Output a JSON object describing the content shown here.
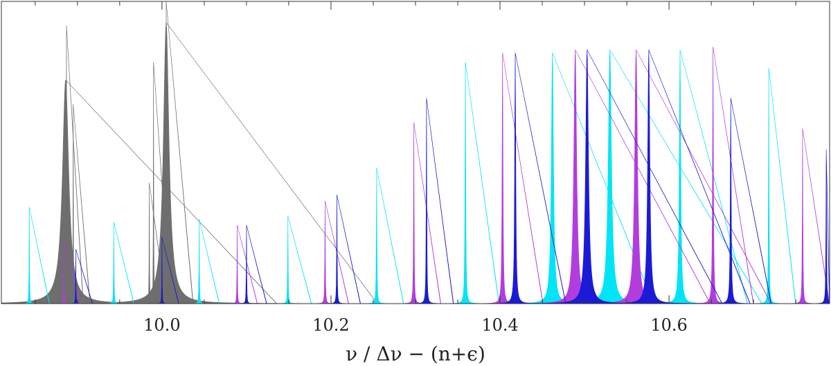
{
  "chart_data": {
    "type": "area",
    "xlabel": "ν / Δν − (n+ϵ)",
    "ylabel": "",
    "title": "",
    "xlim": [
      9.81,
      10.79
    ],
    "ylim": [
      0,
      1.0
    ],
    "xticks": [
      {
        "value": 10.0,
        "label": "10.0"
      },
      {
        "value": 10.2,
        "label": "10.2"
      },
      {
        "value": 10.4,
        "label": "10.4"
      },
      {
        "value": 10.6,
        "label": "10.6"
      }
    ],
    "grid": false,
    "legend": "none",
    "series": [
      {
        "color": "#6e6e6e",
        "peaks": [
          {
            "x": 9.886,
            "h": 0.74,
            "w": 0.009
          },
          {
            "x": 9.887,
            "h": 0.92,
            "w": 0.0005
          },
          {
            "x": 9.895,
            "h": 0.66,
            "w": 0.0005
          },
          {
            "x": 9.985,
            "h": 0.4,
            "w": 0.0005
          },
          {
            "x": 9.99,
            "h": 0.8,
            "w": 0.0005
          },
          {
            "x": 10.005,
            "h": 0.93,
            "w": 0.008
          },
          {
            "x": 10.005,
            "h": 1.0,
            "w": 0.0008
          }
        ]
      },
      {
        "color": "#00e5f5",
        "peaks": [
          {
            "x": 9.843,
            "h": 0.32,
            "w": 0.0006
          },
          {
            "x": 9.943,
            "h": 0.27,
            "w": 0.0006
          },
          {
            "x": 10.044,
            "h": 0.28,
            "w": 0.0006
          },
          {
            "x": 10.149,
            "h": 0.29,
            "w": 0.0007
          },
          {
            "x": 10.254,
            "h": 0.45,
            "w": 0.0008
          },
          {
            "x": 10.359,
            "h": 0.8,
            "w": 0.001
          },
          {
            "x": 10.462,
            "h": 0.83,
            "w": 0.003
          },
          {
            "x": 10.53,
            "h": 0.84,
            "w": 0.0045
          },
          {
            "x": 10.613,
            "h": 0.84,
            "w": 0.002
          },
          {
            "x": 10.718,
            "h": 0.78,
            "w": 0.0008
          }
        ]
      },
      {
        "color": "#b23ddf",
        "peaks": [
          {
            "x": 9.884,
            "h": 0.2,
            "w": 0.0005
          },
          {
            "x": 10.089,
            "h": 0.26,
            "w": 0.0006
          },
          {
            "x": 10.193,
            "h": 0.34,
            "w": 0.0007
          },
          {
            "x": 10.298,
            "h": 0.6,
            "w": 0.0008
          },
          {
            "x": 10.403,
            "h": 0.83,
            "w": 0.0012
          },
          {
            "x": 10.489,
            "h": 0.84,
            "w": 0.004
          },
          {
            "x": 10.561,
            "h": 0.84,
            "w": 0.004
          },
          {
            "x": 10.652,
            "h": 0.85,
            "w": 0.0012
          },
          {
            "x": 10.758,
            "h": 0.58,
            "w": 0.0008
          }
        ]
      },
      {
        "color": "#1b1bd6",
        "peaks": [
          {
            "x": 9.898,
            "h": 0.18,
            "w": 0.0005
          },
          {
            "x": 10.0,
            "h": 0.22,
            "w": 0.0005
          },
          {
            "x": 10.1,
            "h": 0.26,
            "w": 0.0006
          },
          {
            "x": 10.207,
            "h": 0.36,
            "w": 0.0007
          },
          {
            "x": 10.313,
            "h": 0.68,
            "w": 0.0008
          },
          {
            "x": 10.418,
            "h": 0.83,
            "w": 0.0015
          },
          {
            "x": 10.503,
            "h": 0.84,
            "w": 0.004
          },
          {
            "x": 10.576,
            "h": 0.84,
            "w": 0.003
          },
          {
            "x": 10.673,
            "h": 0.68,
            "w": 0.0012
          },
          {
            "x": 10.786,
            "h": 0.51,
            "w": 0.0008
          }
        ]
      }
    ]
  }
}
